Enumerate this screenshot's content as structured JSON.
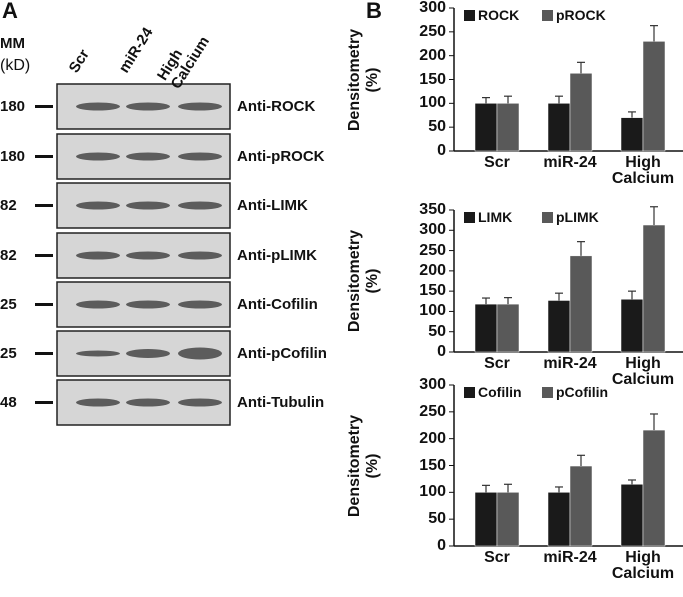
{
  "blot": {
    "panel_label": "A",
    "mm_label": "MM",
    "unit_label": "(kD)",
    "lanes": [
      "Scr",
      "miR-24",
      "High Calcium"
    ],
    "rows": [
      {
        "marker": "180",
        "antibody": "Anti-ROCK"
      },
      {
        "marker": "180",
        "antibody": "Anti-pROCK"
      },
      {
        "marker": "82",
        "antibody": "Anti-LIMK"
      },
      {
        "marker": "82",
        "antibody": "Anti-pLIMK"
      },
      {
        "marker": "25",
        "antibody": "Anti-Cofilin"
      },
      {
        "marker": "25",
        "antibody": "Anti-pCofilin"
      },
      {
        "marker": "48",
        "antibody": "Anti-Tubulin"
      }
    ]
  },
  "panel_b_label": "B",
  "chart_data": [
    {
      "type": "bar",
      "y_label": "Densitometry (%)",
      "categories": [
        "Scr",
        "miR-24",
        "High Calcium"
      ],
      "series": [
        {
          "name": "ROCK",
          "color": "#1a1a1a",
          "values": [
            100,
            100,
            70
          ],
          "errors": [
            12,
            15,
            12
          ]
        },
        {
          "name": "pROCK",
          "color": "#595959",
          "values": [
            100,
            163,
            230
          ],
          "errors": [
            15,
            23,
            33
          ]
        }
      ],
      "ylim": [
        0,
        300
      ],
      "yticks": [
        0,
        50,
        100,
        150,
        200,
        250,
        300
      ],
      "legend": "top"
    },
    {
      "type": "bar",
      "y_label": "Densitometry (%)",
      "categories": [
        "Scr",
        "miR-24",
        "High Calcium"
      ],
      "series": [
        {
          "name": "LIMK",
          "color": "#1a1a1a",
          "values": [
            118,
            127,
            130
          ],
          "errors": [
            15,
            18,
            20
          ]
        },
        {
          "name": "pLIMK",
          "color": "#595959",
          "values": [
            118,
            237,
            313
          ],
          "errors": [
            16,
            35,
            45
          ]
        }
      ],
      "ylim": [
        0,
        350
      ],
      "yticks": [
        0,
        50,
        100,
        150,
        200,
        250,
        300,
        350
      ],
      "legend": "top"
    },
    {
      "type": "bar",
      "y_label": "Densitometry (%)",
      "categories": [
        "Scr",
        "miR-24",
        "High Calcium"
      ],
      "series": [
        {
          "name": "Cofilin",
          "color": "#1a1a1a",
          "values": [
            100,
            100,
            115
          ],
          "errors": [
            13,
            10,
            8
          ]
        },
        {
          "name": "pCofilin",
          "color": "#595959",
          "values": [
            100,
            149,
            216
          ],
          "errors": [
            15,
            20,
            30
          ]
        }
      ],
      "ylim": [
        0,
        300
      ],
      "yticks": [
        0,
        50,
        100,
        150,
        200,
        250,
        300
      ],
      "legend": "top"
    }
  ]
}
